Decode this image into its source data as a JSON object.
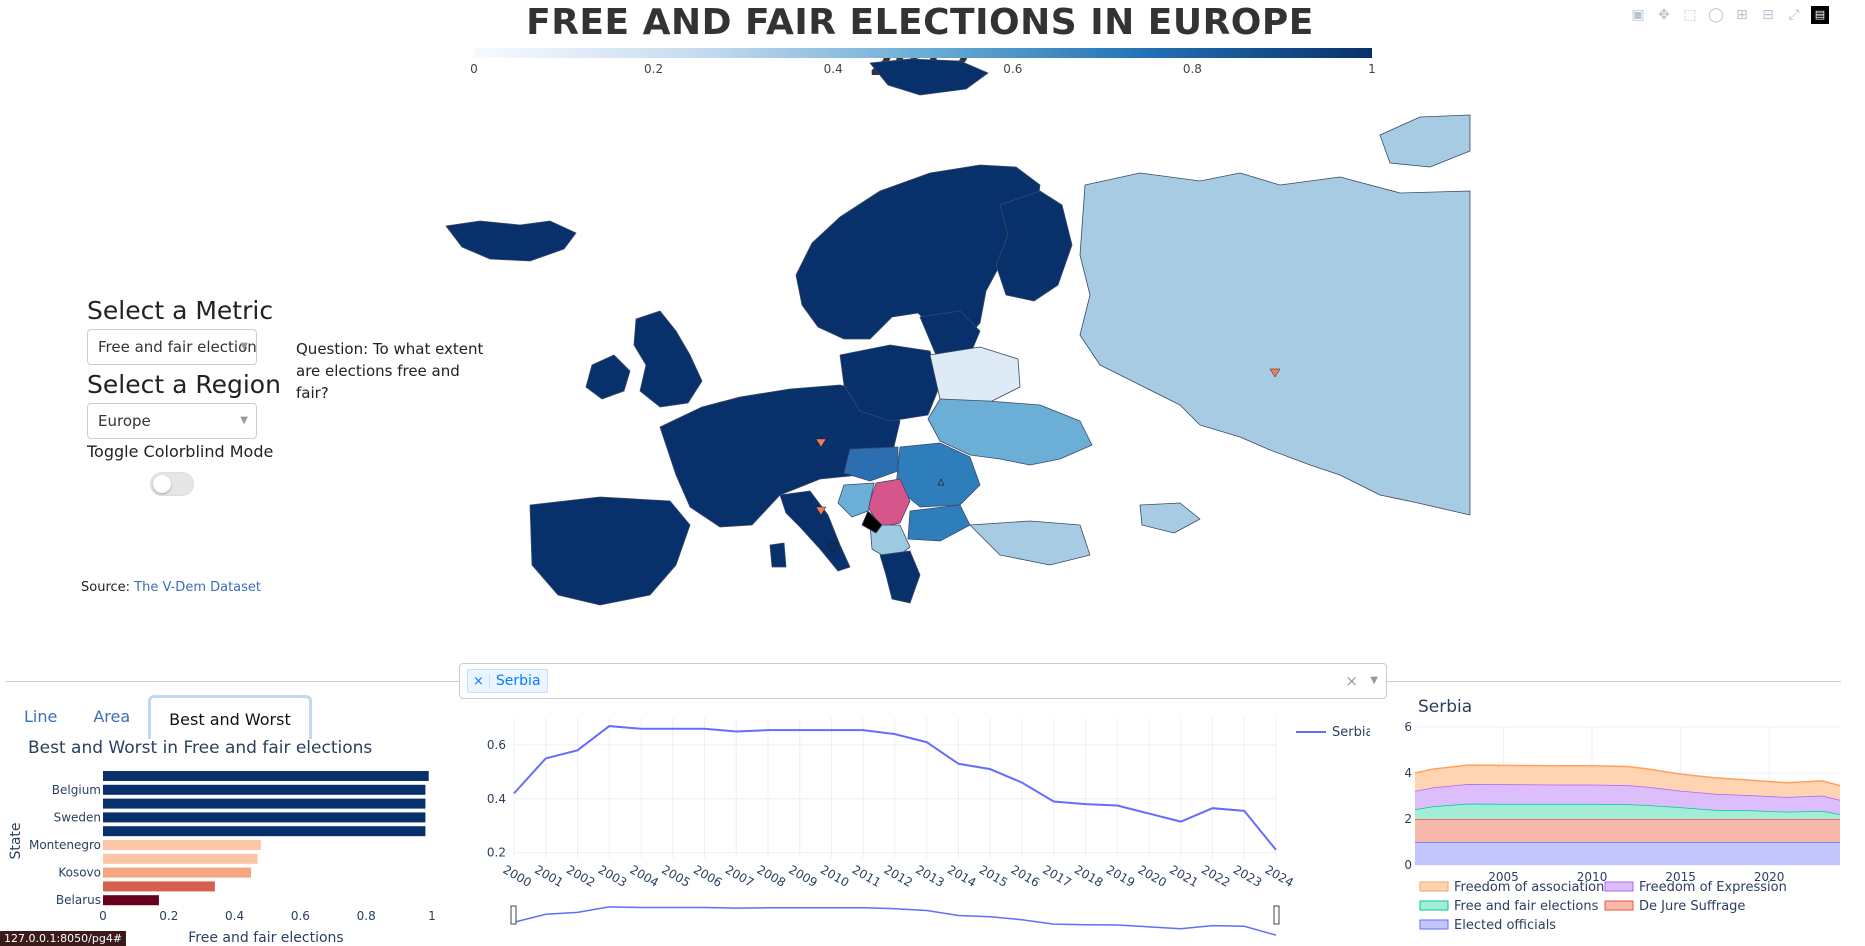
{
  "map_title": "FREE AND FAIR ELECTIONS IN EUROPE 2012",
  "colorbar": {
    "ticks": [
      "0",
      "0.2",
      "0.4",
      "0.6",
      "0.8",
      "1"
    ],
    "colors": [
      "#f7fbff",
      "#08306b"
    ]
  },
  "controls": {
    "metric_label": "Select a Metric",
    "metric_value": "Free and fair elections",
    "region_label": "Select a Region",
    "region_value": "Europe",
    "toggle_label": "Toggle Colorblind Mode"
  },
  "question": "Question: To what extent are elections free and fair?",
  "source": {
    "prefix": "Source:",
    "link_text": "The V-Dem Dataset"
  },
  "country_selector": {
    "selected": [
      "Serbia"
    ],
    "remove_symbol": "×"
  },
  "tabs": [
    "Line",
    "Area",
    "Best and Worst"
  ],
  "status_url": "127.0.0.1:8050/pg4#",
  "chart_data": [
    {
      "type": "bar",
      "orientation": "horizontal",
      "title": "Best and Worst in Free and fair elections",
      "xlabel": "Free and fair elections",
      "ylabel": "State",
      "xlim": [
        0,
        1
      ],
      "xticks": [
        "0",
        "0.2",
        "0.4",
        "0.6",
        "0.8",
        "1"
      ],
      "categories_shown": [
        "Belgium",
        "Sweden",
        "Montenegro",
        "Kosovo",
        "Belarus"
      ],
      "bars": [
        {
          "value": 0.99,
          "color": "#08306b"
        },
        {
          "value": 0.98,
          "color": "#08306b",
          "label": "Belgium"
        },
        {
          "value": 0.98,
          "color": "#08306b"
        },
        {
          "value": 0.98,
          "color": "#08306b",
          "label": "Sweden"
        },
        {
          "value": 0.98,
          "color": "#08306b"
        },
        {
          "value": 0.48,
          "color": "#fcc5a6",
          "label": "Montenegro"
        },
        {
          "value": 0.47,
          "color": "#fcc5a6"
        },
        {
          "value": 0.45,
          "color": "#f4a582",
          "label": "Kosovo"
        },
        {
          "value": 0.34,
          "color": "#d6604d"
        },
        {
          "value": 0.17,
          "color": "#67001f",
          "label": "Belarus"
        }
      ]
    },
    {
      "type": "line",
      "x": [
        "2000",
        "2001",
        "2002",
        "2003",
        "2004",
        "2005",
        "2006",
        "2007",
        "2008",
        "2009",
        "2010",
        "2011",
        "2012",
        "2013",
        "2014",
        "2015",
        "2016",
        "2017",
        "2018",
        "2019",
        "2020",
        "2021",
        "2022",
        "2023",
        "2024"
      ],
      "series": [
        {
          "name": "Serbia",
          "color": "#636efa",
          "values": [
            0.42,
            0.55,
            0.58,
            0.67,
            0.66,
            0.66,
            0.66,
            0.65,
            0.655,
            0.655,
            0.655,
            0.655,
            0.64,
            0.61,
            0.53,
            0.51,
            0.46,
            0.39,
            0.38,
            0.375,
            0.345,
            0.315,
            0.365,
            0.355,
            0.21
          ]
        }
      ],
      "ylim": [
        0.18,
        0.7
      ],
      "yticks": [
        "0.2",
        "0.4",
        "0.6"
      ]
    },
    {
      "type": "area",
      "title": "Serbia",
      "x": [
        2000,
        2001,
        2003,
        2005,
        2008,
        2010,
        2012,
        2013,
        2015,
        2017,
        2019,
        2021,
        2023,
        2024
      ],
      "ylim": [
        0,
        6
      ],
      "yticks": [
        "0",
        "2",
        "4",
        "6"
      ],
      "xticks": [
        "2005",
        "2010",
        "2015",
        "2020"
      ],
      "series": [
        {
          "name": "Elected officials",
          "color": "#636efa",
          "fill": "#c3c6fd",
          "values": [
            1,
            1,
            1,
            1,
            1,
            1,
            1,
            1,
            1,
            1,
            1,
            1,
            1,
            1
          ]
        },
        {
          "name": "De Jure Suffrage",
          "color": "#ef553b",
          "fill": "#f9b8ac",
          "values": [
            1,
            1,
            1,
            1,
            1,
            1,
            1,
            1,
            1,
            1,
            1,
            1,
            1,
            1
          ]
        },
        {
          "name": "Free and fair elections",
          "color": "#00cc96",
          "fill": "#a3ecd6",
          "values": [
            0.42,
            0.55,
            0.67,
            0.66,
            0.655,
            0.655,
            0.64,
            0.61,
            0.51,
            0.39,
            0.375,
            0.315,
            0.355,
            0.21
          ]
        },
        {
          "name": "Freedom of Expression",
          "color": "#ab63fa",
          "fill": "#dcbefc",
          "values": [
            0.8,
            0.82,
            0.85,
            0.85,
            0.84,
            0.84,
            0.83,
            0.8,
            0.72,
            0.7,
            0.66,
            0.64,
            0.66,
            0.62
          ]
        },
        {
          "name": "Freedom of association",
          "color": "#ffa15a",
          "fill": "#ffd4b3",
          "values": [
            0.78,
            0.8,
            0.82,
            0.82,
            0.82,
            0.82,
            0.81,
            0.78,
            0.72,
            0.7,
            0.65,
            0.62,
            0.64,
            0.62
          ]
        }
      ]
    }
  ]
}
